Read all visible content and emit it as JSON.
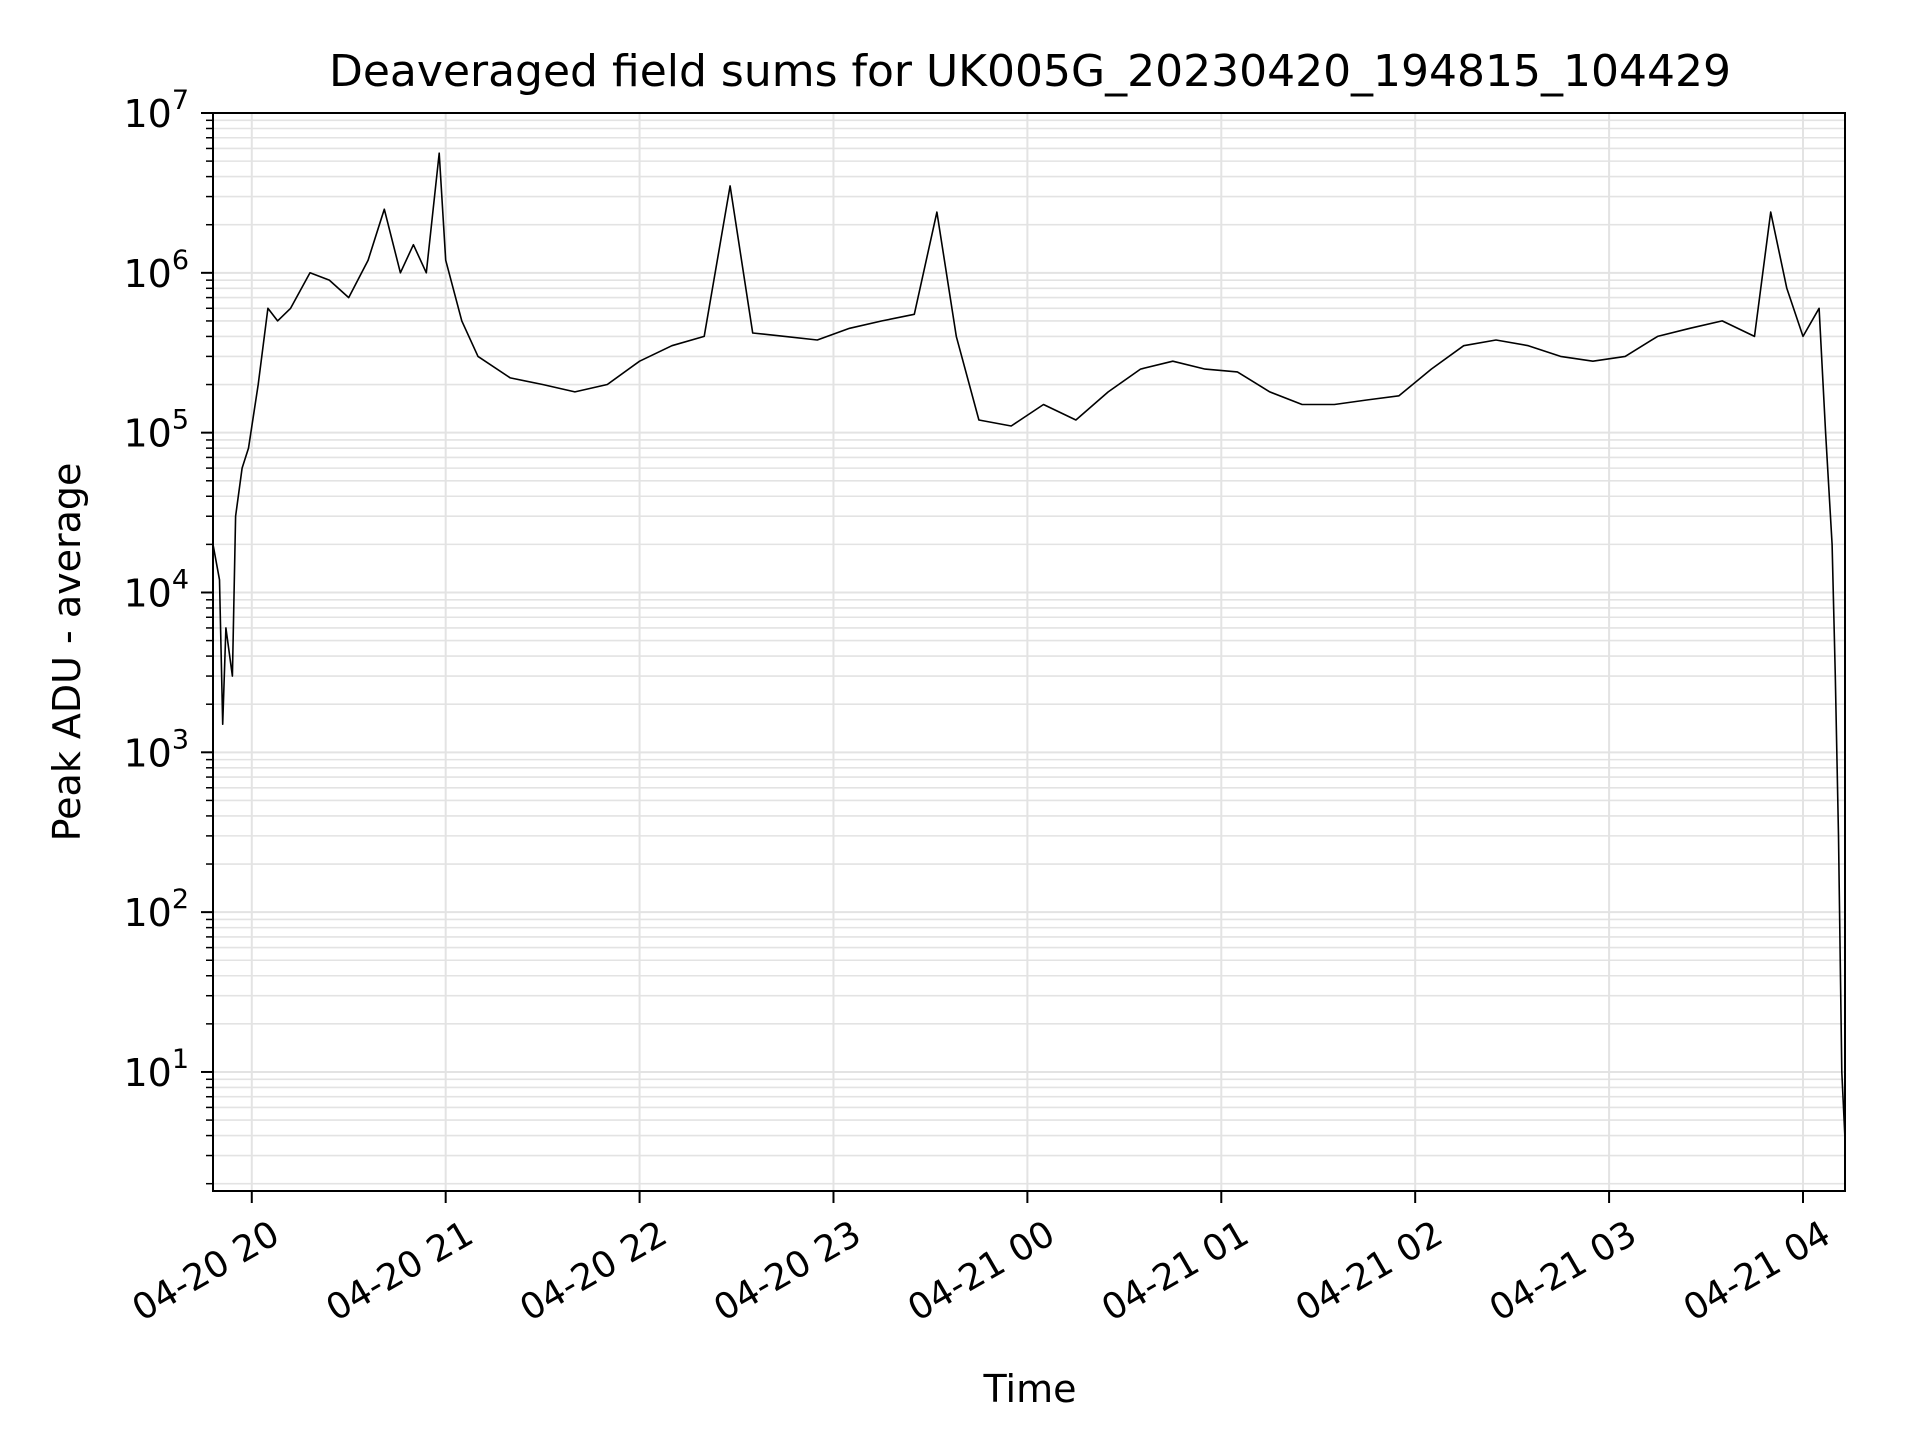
{
  "chart_data": {
    "type": "line",
    "title": "Deaveraged field sums for UK005G_20230420_194815_104429",
    "xlabel": "Time",
    "ylabel": "Peak ADU - average",
    "yscale": "log",
    "ylim": [
      1.8,
      10000000
    ],
    "xlim": [
      "2023-04-20 19:48",
      "2023-04-21 04:13"
    ],
    "grid": true,
    "line_color": "#000000",
    "grid_color": "#e3e3e3",
    "x_ticks": [
      {
        "value": "2023-04-20 20:00",
        "label": "04-20 20"
      },
      {
        "value": "2023-04-20 21:00",
        "label": "04-20 21"
      },
      {
        "value": "2023-04-20 22:00",
        "label": "04-20 22"
      },
      {
        "value": "2023-04-20 23:00",
        "label": "04-20 23"
      },
      {
        "value": "2023-04-21 00:00",
        "label": "04-21 00"
      },
      {
        "value": "2023-04-21 01:00",
        "label": "04-21 01"
      },
      {
        "value": "2023-04-21 02:00",
        "label": "04-21 02"
      },
      {
        "value": "2023-04-21 03:00",
        "label": "04-21 03"
      },
      {
        "value": "2023-04-21 04:00",
        "label": "04-21 04"
      }
    ],
    "y_ticks": [
      {
        "value": 10,
        "base": "10",
        "exp": "1"
      },
      {
        "value": 100,
        "base": "10",
        "exp": "2"
      },
      {
        "value": 1000,
        "base": "10",
        "exp": "3"
      },
      {
        "value": 10000,
        "base": "10",
        "exp": "4"
      },
      {
        "value": 100000,
        "base": "10",
        "exp": "5"
      },
      {
        "value": 1000000,
        "base": "10",
        "exp": "6"
      },
      {
        "value": 10000000,
        "base": "10",
        "exp": "7"
      }
    ],
    "series": [
      {
        "points": [
          [
            "2023-04-20 19:48",
            20000
          ],
          [
            "2023-04-20 19:50",
            12000
          ],
          [
            "2023-04-20 19:51",
            1500
          ],
          [
            "2023-04-20 19:52",
            6000
          ],
          [
            "2023-04-20 19:54",
            3000
          ],
          [
            "2023-04-20 19:55",
            30000
          ],
          [
            "2023-04-20 19:57",
            60000
          ],
          [
            "2023-04-20 19:59",
            80000
          ],
          [
            "2023-04-20 20:02",
            200000
          ],
          [
            "2023-04-20 20:05",
            600000
          ],
          [
            "2023-04-20 20:08",
            500000
          ],
          [
            "2023-04-20 20:12",
            600000
          ],
          [
            "2023-04-20 20:18",
            1000000
          ],
          [
            "2023-04-20 20:24",
            900000
          ],
          [
            "2023-04-20 20:30",
            700000
          ],
          [
            "2023-04-20 20:36",
            1200000
          ],
          [
            "2023-04-20 20:41",
            2500000
          ],
          [
            "2023-04-20 20:46",
            1000000
          ],
          [
            "2023-04-20 20:50",
            1500000
          ],
          [
            "2023-04-20 20:54",
            1000000
          ],
          [
            "2023-04-20 20:58",
            5600000
          ],
          [
            "2023-04-20 21:00",
            1200000
          ],
          [
            "2023-04-20 21:05",
            500000
          ],
          [
            "2023-04-20 21:10",
            300000
          ],
          [
            "2023-04-20 21:20",
            220000
          ],
          [
            "2023-04-20 21:30",
            200000
          ],
          [
            "2023-04-20 21:40",
            180000
          ],
          [
            "2023-04-20 21:50",
            200000
          ],
          [
            "2023-04-20 22:00",
            280000
          ],
          [
            "2023-04-20 22:10",
            350000
          ],
          [
            "2023-04-20 22:20",
            400000
          ],
          [
            "2023-04-20 22:28",
            3500000
          ],
          [
            "2023-04-20 22:35",
            420000
          ],
          [
            "2023-04-20 22:45",
            400000
          ],
          [
            "2023-04-20 22:55",
            380000
          ],
          [
            "2023-04-20 23:05",
            450000
          ],
          [
            "2023-04-20 23:15",
            500000
          ],
          [
            "2023-04-20 23:25",
            550000
          ],
          [
            "2023-04-20 23:32",
            2400000
          ],
          [
            "2023-04-20 23:38",
            400000
          ],
          [
            "2023-04-20 23:45",
            120000
          ],
          [
            "2023-04-20 23:55",
            110000
          ],
          [
            "2023-04-21 00:05",
            150000
          ],
          [
            "2023-04-21 00:15",
            120000
          ],
          [
            "2023-04-21 00:25",
            180000
          ],
          [
            "2023-04-21 00:35",
            250000
          ],
          [
            "2023-04-21 00:45",
            280000
          ],
          [
            "2023-04-21 00:55",
            250000
          ],
          [
            "2023-04-21 01:05",
            240000
          ],
          [
            "2023-04-21 01:15",
            180000
          ],
          [
            "2023-04-21 01:25",
            150000
          ],
          [
            "2023-04-21 01:35",
            150000
          ],
          [
            "2023-04-21 01:45",
            160000
          ],
          [
            "2023-04-21 01:55",
            170000
          ],
          [
            "2023-04-21 02:05",
            250000
          ],
          [
            "2023-04-21 02:15",
            350000
          ],
          [
            "2023-04-21 02:25",
            380000
          ],
          [
            "2023-04-21 02:35",
            350000
          ],
          [
            "2023-04-21 02:45",
            300000
          ],
          [
            "2023-04-21 02:55",
            280000
          ],
          [
            "2023-04-21 03:05",
            300000
          ],
          [
            "2023-04-21 03:15",
            400000
          ],
          [
            "2023-04-21 03:25",
            450000
          ],
          [
            "2023-04-21 03:35",
            500000
          ],
          [
            "2023-04-21 03:45",
            400000
          ],
          [
            "2023-04-21 03:50",
            2400000
          ],
          [
            "2023-04-21 03:55",
            800000
          ],
          [
            "2023-04-21 04:00",
            400000
          ],
          [
            "2023-04-21 04:05",
            600000
          ],
          [
            "2023-04-21 04:07",
            100000
          ],
          [
            "2023-04-21 04:09",
            20000
          ],
          [
            "2023-04-21 04:10",
            3000
          ],
          [
            "2023-04-21 04:11",
            300
          ],
          [
            "2023-04-21 04:12",
            10
          ],
          [
            "2023-04-21 04:13",
            3.8
          ]
        ]
      }
    ]
  }
}
